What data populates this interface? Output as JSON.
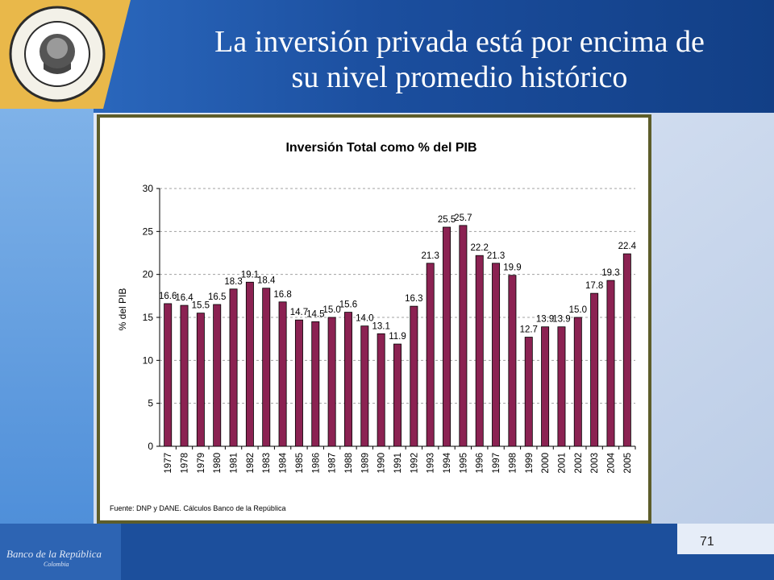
{
  "slide": {
    "title_line1": "La inversión privada está por encima de",
    "title_line2": "su nivel promedio histórico",
    "page_number": "71",
    "logo_text": "BANCO DE LA REPUBLICA",
    "logo_subtext": "COLOMBIA",
    "footer_logo": "Banco de la República",
    "footer_logo_sub": "Colombia"
  },
  "colors": {
    "bar": "#8b2252",
    "header_blue": "#1c4f9c",
    "frame": "#5d5d2a"
  },
  "chart_data": {
    "type": "bar",
    "title": "Inversión Total como % del PIB",
    "ylabel": "% del PIB",
    "xlabel": "",
    "source": "Fuente: DNP y DANE. Cálculos Banco de la República",
    "ylim": [
      0,
      30
    ],
    "yticks": [
      0,
      5,
      10,
      15,
      20,
      25,
      30
    ],
    "grid": true,
    "categories": [
      "1977",
      "1978",
      "1979",
      "1980",
      "1981",
      "1982",
      "1983",
      "1984",
      "1985",
      "1986",
      "1987",
      "1988",
      "1989",
      "1990",
      "1991",
      "1992",
      "1993",
      "1994",
      "1995",
      "1996",
      "1997",
      "1998",
      "1999",
      "2000",
      "2001",
      "2002",
      "2003",
      "2004",
      "2005"
    ],
    "values": [
      16.6,
      16.4,
      15.5,
      16.5,
      18.3,
      19.1,
      18.4,
      16.8,
      14.7,
      14.5,
      15.0,
      15.6,
      14.0,
      13.1,
      11.9,
      16.3,
      21.3,
      25.5,
      25.7,
      22.2,
      21.3,
      19.9,
      12.7,
      13.9,
      13.9,
      15.0,
      17.8,
      19.3,
      22.4
    ],
    "labels": [
      "16.6",
      "16.4",
      "15.5",
      "16.5",
      "18.3",
      "19.1",
      "18.4",
      "16.8",
      "14.7",
      "14.5",
      "15.0",
      "15.6",
      "14.0",
      "13.1",
      "11.9",
      "16.3",
      "21.3",
      "25.5",
      "25.7",
      "22.2",
      "21.3",
      "19.9",
      "12.7",
      "13.9",
      "13.9",
      "15.0",
      "17.8",
      "19.3",
      "22.4"
    ]
  }
}
